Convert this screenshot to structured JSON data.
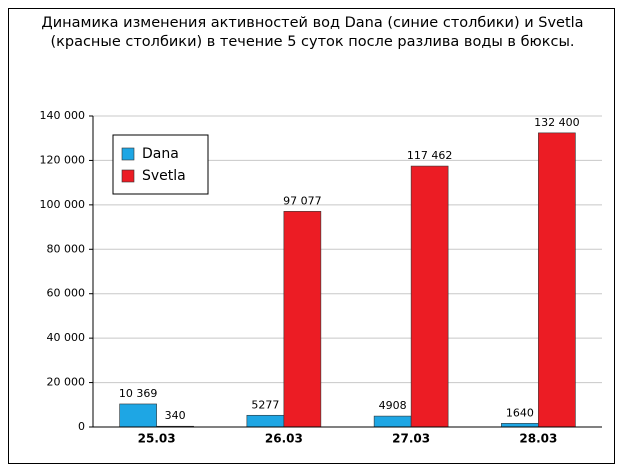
{
  "chart_data": {
    "type": "bar",
    "title": "Динамика изменения активностей вод Dana (синие столбики) и Svetla (красные столбики) в течение 5 суток после разлива воды в бюксы.",
    "categories": [
      "25.03",
      "26.03",
      "27.03",
      "28.03"
    ],
    "series": [
      {
        "name": "Dana",
        "color": "#1ea6e4",
        "values": [
          10369,
          5277,
          4908,
          1640
        ],
        "value_labels": [
          "10 369",
          "5277",
          "4908",
          "1640"
        ]
      },
      {
        "name": "Svetla",
        "color": "#ec1c24",
        "values": [
          340,
          97077,
          117462,
          132400
        ],
        "value_labels": [
          "340",
          "97 077",
          "117 462",
          "132 400"
        ]
      }
    ],
    "ylim": [
      0,
      140000
    ],
    "yticks": [
      0,
      {
        "value": 20000,
        "label": "20 000"
      },
      {
        "value": 40000,
        "label": "40 000"
      },
      {
        "value": 60000,
        "label": "60 000"
      },
      {
        "value": 80000,
        "label": "80 000"
      },
      {
        "value": 100000,
        "label": "100 000"
      },
      {
        "value": 120000,
        "label": "120 000"
      },
      {
        "value": 140000,
        "label": "140 000"
      }
    ],
    "grid": true,
    "legend": "upper left"
  }
}
